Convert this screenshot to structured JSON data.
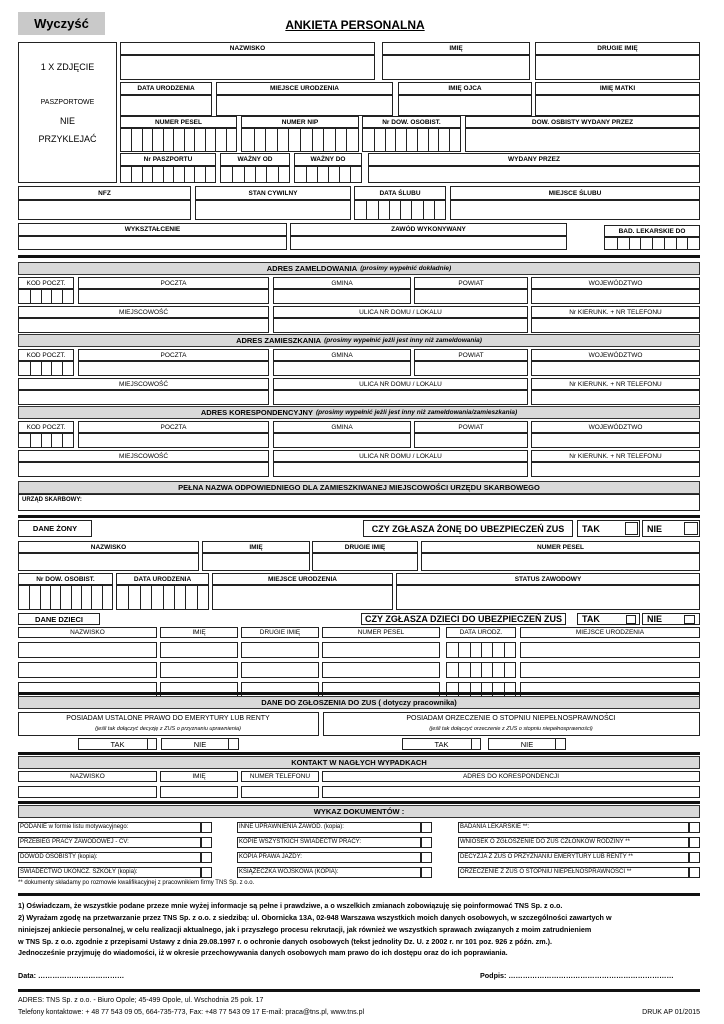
{
  "clear_button": "Wyczyść",
  "title": "ANKIETA PERSONALNA",
  "photo": {
    "line1": "1 X ZDJĘCIE",
    "line2": "PASZPORTOWE",
    "line3": "NIE",
    "line4": "PRZYKLEJAĆ"
  },
  "personal": {
    "surname": "NAZWISKO",
    "first_name": "IMIĘ",
    "second_name": "DRUGIE IMIĘ",
    "birth_date": "DATA URODZENIA",
    "birth_place": "MIEJSCE URODZENIA",
    "father_name": "IMIĘ OJCA",
    "mother_name": "IMIĘ MATKI",
    "pesel": "NUMER PESEL",
    "nip": "NUMER NIP",
    "id_number": "Nr DOW. OSOBIST.",
    "id_issued_by": "DOW. OSBISTY WYDANY PRZEZ",
    "passport": "Nr PASZPORTU",
    "valid_from": "WAŻNY OD",
    "valid_to": "WAŻNY DO",
    "issued_by": "WYDANY PRZEZ",
    "nfz": "NFZ",
    "marital_status": "STAN CYWILNY",
    "wedding_date": "DATA ŚLUBU",
    "wedding_place": "MIEJSCE ŚLUBU",
    "education": "WYKSZTAŁCENIE",
    "profession": "ZAWÓD WYKONYWANY",
    "medical_exam": "BAD. LEKARSKIE DO"
  },
  "address_fields": {
    "postal_code": "KOD POCZT.",
    "post_office": "POCZTA",
    "commune": "GMINA",
    "county": "POWIAT",
    "voivodeship": "WOJEWÓDZTWO",
    "town": "MIEJSCOWOŚĆ",
    "street": "ULICA NR DOMU / LOKALU",
    "phone": "Nr KIERUNK. + NR TELEFONU"
  },
  "addresses": [
    {
      "title": "ADRES ZAMELDOWANIA",
      "note": "(prosimy wypełnić dokładnie)"
    },
    {
      "title": "ADRES ZAMIESZKANIA",
      "note": "(prosimy wypełnić jeżli jest inny niż zameldowania)"
    },
    {
      "title": "ADRES KORESPONDENCYJNY",
      "note": "(prosimy wypełnić jeżli jest inny niż zameldowania/zamieszkania)"
    }
  ],
  "tax_office": {
    "header": "PEŁNA NAZWA ODPOWIEDNIEGO DLA ZAMIESZKIWANEJ MIEJSCOWOŚCI URZĘDU SKARBOWEGO",
    "label": "URZĄD SKARBOWY:"
  },
  "spouse": {
    "section": "DANE ŻONY",
    "question": "CZY ZGŁASZA ŻONĘ DO UBEZPIECZEŃ ZUS",
    "yes": "TAK",
    "no": "NIE",
    "surname": "NAZWISKO",
    "first_name": "IMIĘ",
    "second_name": "DRUGIE IMIĘ",
    "pesel": "NUMER   PESEL",
    "id_number": "Nr DOW. OSOBIST.",
    "birth_date": "DATA URODZENIA",
    "birth_place": "MIEJSCE URODZENIA",
    "job_status": "STATUS ZAWODOWY"
  },
  "children": {
    "section": "DANE DZIECI",
    "question": "CZY ZGŁASZA DZIECI DO UBEZPIECZEŃ ZUS",
    "yes": "TAK",
    "no": "NIE",
    "columns": [
      "NAZWISKO",
      "IMIĘ",
      "DRUGIE IMIĘ",
      "NUMER PESEL",
      "DATA URODZ.",
      "MIEJSCE URODZENIA"
    ]
  },
  "zus": {
    "header": "DANE DO ZGŁOSZENIA DO ZUS ( dotyczy pracownika)",
    "pension": "POSIADAM USTALONE PRAWO DO EMERYTURY LUB RENTY",
    "pension_note": "(jeśli tak dołączyć decyzję z ZUS o przyznaniu uprawnienia)",
    "disability": "POSIADAM ORZECZENIE O STOPNIU NIEPEŁNOSPRAWNOŚCI",
    "disability_note": "(jeśli tak dołączyć orzeczenie z ZUS o stopniu niepełnosprawności)",
    "yes": "TAK",
    "no": "NIE"
  },
  "emergency": {
    "header": "KONTAKT W NAGŁYCH WYPADKACH",
    "columns": [
      "NAZWISKO",
      "IMIĘ",
      "NUMER TELEFONU",
      "ADRES DO KORESPONDENCJI"
    ]
  },
  "documents": {
    "header": "WYKAZ DOKUMENTÓW :",
    "items": [
      "PODANIE w formie listu motywacyjnego:",
      "PRZEBIEG PRACY ZAWODOWEJ - CV:",
      "DOWÓD OSOBISTY (kopia):",
      "ŚWIADECTWO UKOŃCZ. SZKOŁY (kopia):",
      "INNE UPRAWNIENIA ZAWOD. (kopia):",
      "KOPIE WSZYSTKICH ŚWIADECTW PRACY:",
      "KOPIA PRAWA JAZDY:",
      "KSIĄŻECZKA WOJSKOWA (KOPIA):",
      "BADANIA LEKARSKIE **:",
      "WNIOSEK O ZGŁOSZENIE DO ZUS CZŁONKÓW RODZINY **",
      "DECYZJA Z ZUS O PRZYZNANIU EMERYTURY LUB RENTY **",
      "ORZECZENIE Z ZUS O STOPNIU NIEPEŁNOSPRAWNOŚCI **"
    ],
    "footnote": "** dokumenty składamy po rozmowie kwalifikacyjnej z pracownikiem firmy TNS Sp. z o.o."
  },
  "statements": [
    "1) Oświadczam, że wszystkie podane przeze mnie wyżej informacje są pełne i prawdziwe, a o wszelkich zmianach zobowiązuję się poinformować TNS Sp. z o.o.",
    "2) Wyrażam zgodę na przetwarzanie przez TNS Sp. z o.o. z siedzibą: ul. Obornicka 13A, 02-948 Warszawa wszystkich moich danych osobowych, w szczególności zawartych w",
    "niniejszej ankiecie personalnej, w celu realizacji aktualnego, jak i przyszłego procesu rekrutacji, jak również we wszystkich sprawach związanych z moim zatrudnieniem",
    "w TNS Sp. z o.o.  zgodnie z przepisami Ustawy z dnia 29.08.1997 r. o ochronie danych osobowych (tekst jednolity Dz. U.  z 2002 r. nr 101 poz. 926 z późn. zm.).",
    "Jednocześnie przyjmuję do wiadomości, iż w okresie przechowywania danych osobowych mam prawo do ich dostępu oraz do ich poprawiania."
  ],
  "date_label": "Data: ………………………………",
  "signature_label": "Podpis: ……………………………………………………………",
  "footer": {
    "address": "ADRES: TNS Sp. z o.o. - Biuro Opole; 45-499 Opole, ul. Wschodnia 25 pok. 17",
    "contacts": "Telefony kontaktowe: + 48 77 543 09 05, 664-735-773, Fax: +48 77 543 09 17 E-mail: praca@tns.pl, www.tns.pl",
    "form_code": "DRUK AP 01/2015"
  }
}
